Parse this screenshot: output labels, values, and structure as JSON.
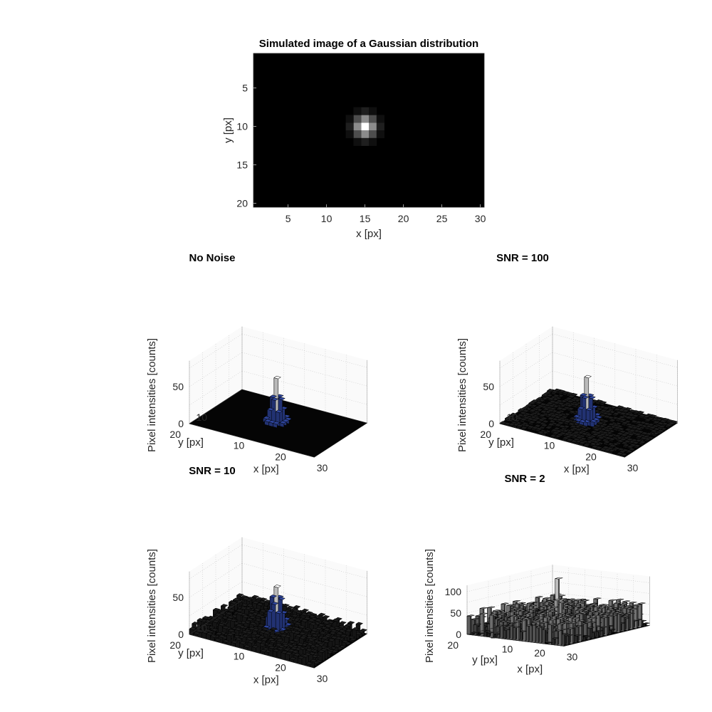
{
  "chart_data": [
    {
      "type": "heatmap",
      "title": "Simulated image of a Gaussian distribution",
      "xlabel": "x [px]",
      "ylabel": "y [px]",
      "xlim": [
        0.5,
        30.5
      ],
      "ylim": [
        0.5,
        20.5
      ],
      "y_reversed": true,
      "colormap": "gray",
      "xticks": [
        5,
        10,
        15,
        20,
        25,
        30
      ],
      "yticks": [
        5,
        10,
        15,
        20
      ],
      "grid_size": [
        30,
        20
      ],
      "peak": {
        "x": 15,
        "y": 10
      },
      "pixels": [
        {
          "x": 15,
          "y": 10,
          "v": 1.0
        },
        {
          "x": 14,
          "y": 10,
          "v": 0.55
        },
        {
          "x": 16,
          "y": 10,
          "v": 0.55
        },
        {
          "x": 15,
          "y": 9,
          "v": 0.55
        },
        {
          "x": 15,
          "y": 11,
          "v": 0.55
        },
        {
          "x": 14,
          "y": 9,
          "v": 0.3
        },
        {
          "x": 16,
          "y": 9,
          "v": 0.3
        },
        {
          "x": 14,
          "y": 11,
          "v": 0.3
        },
        {
          "x": 16,
          "y": 11,
          "v": 0.3
        },
        {
          "x": 13,
          "y": 10,
          "v": 0.12
        },
        {
          "x": 17,
          "y": 10,
          "v": 0.12
        },
        {
          "x": 15,
          "y": 8,
          "v": 0.12
        },
        {
          "x": 15,
          "y": 12,
          "v": 0.12
        },
        {
          "x": 13,
          "y": 9,
          "v": 0.06
        },
        {
          "x": 17,
          "y": 9,
          "v": 0.06
        },
        {
          "x": 13,
          "y": 11,
          "v": 0.06
        },
        {
          "x": 17,
          "y": 11,
          "v": 0.06
        },
        {
          "x": 14,
          "y": 8,
          "v": 0.06
        },
        {
          "x": 16,
          "y": 8,
          "v": 0.06
        },
        {
          "x": 14,
          "y": 12,
          "v": 0.06
        },
        {
          "x": 16,
          "y": 12,
          "v": 0.06
        }
      ]
    },
    {
      "type": "bar3d",
      "title": "No Noise",
      "xlabel": "x [px]",
      "ylabel": "y [px]",
      "zlabel": "Pixel intensities [counts]",
      "xticks": [
        10,
        20,
        30
      ],
      "yticks": [
        10,
        20
      ],
      "zticks": [
        0,
        50
      ],
      "zlim": [
        0,
        85
      ],
      "peak": {
        "x": 15,
        "y": 10,
        "value": 60
      }
    },
    {
      "type": "bar3d",
      "title": "SNR = 100",
      "xlabel": "x [px]",
      "ylabel": "y [px]",
      "zlabel": "Pixel intensities [counts]",
      "xticks": [
        10,
        20,
        30
      ],
      "yticks": [
        10,
        20
      ],
      "zticks": [
        0,
        50
      ],
      "zlim": [
        0,
        85
      ],
      "peak": {
        "x": 15,
        "y": 10,
        "value": 60
      }
    },
    {
      "type": "bar3d",
      "title": "SNR = 10",
      "xlabel": "x [px]",
      "ylabel": "y [px]",
      "zlabel": "Pixel intensities [counts]",
      "xticks": [
        10,
        20,
        30
      ],
      "yticks": [
        10,
        20
      ],
      "zticks": [
        0,
        50
      ],
      "zlim": [
        0,
        85
      ],
      "peak": {
        "x": 15,
        "y": 10,
        "value": 62
      }
    },
    {
      "type": "bar3d",
      "title": "SNR = 2",
      "xlabel": "x [px]",
      "ylabel": "y [px]",
      "zlabel": "Pixel intensities [counts]",
      "xticks": [
        10,
        20,
        30
      ],
      "yticks": [
        10,
        20
      ],
      "zticks": [
        0,
        50,
        100
      ],
      "zlim": [
        0,
        115
      ],
      "peak": {
        "x": 15,
        "y": 10,
        "value": 80
      }
    }
  ]
}
